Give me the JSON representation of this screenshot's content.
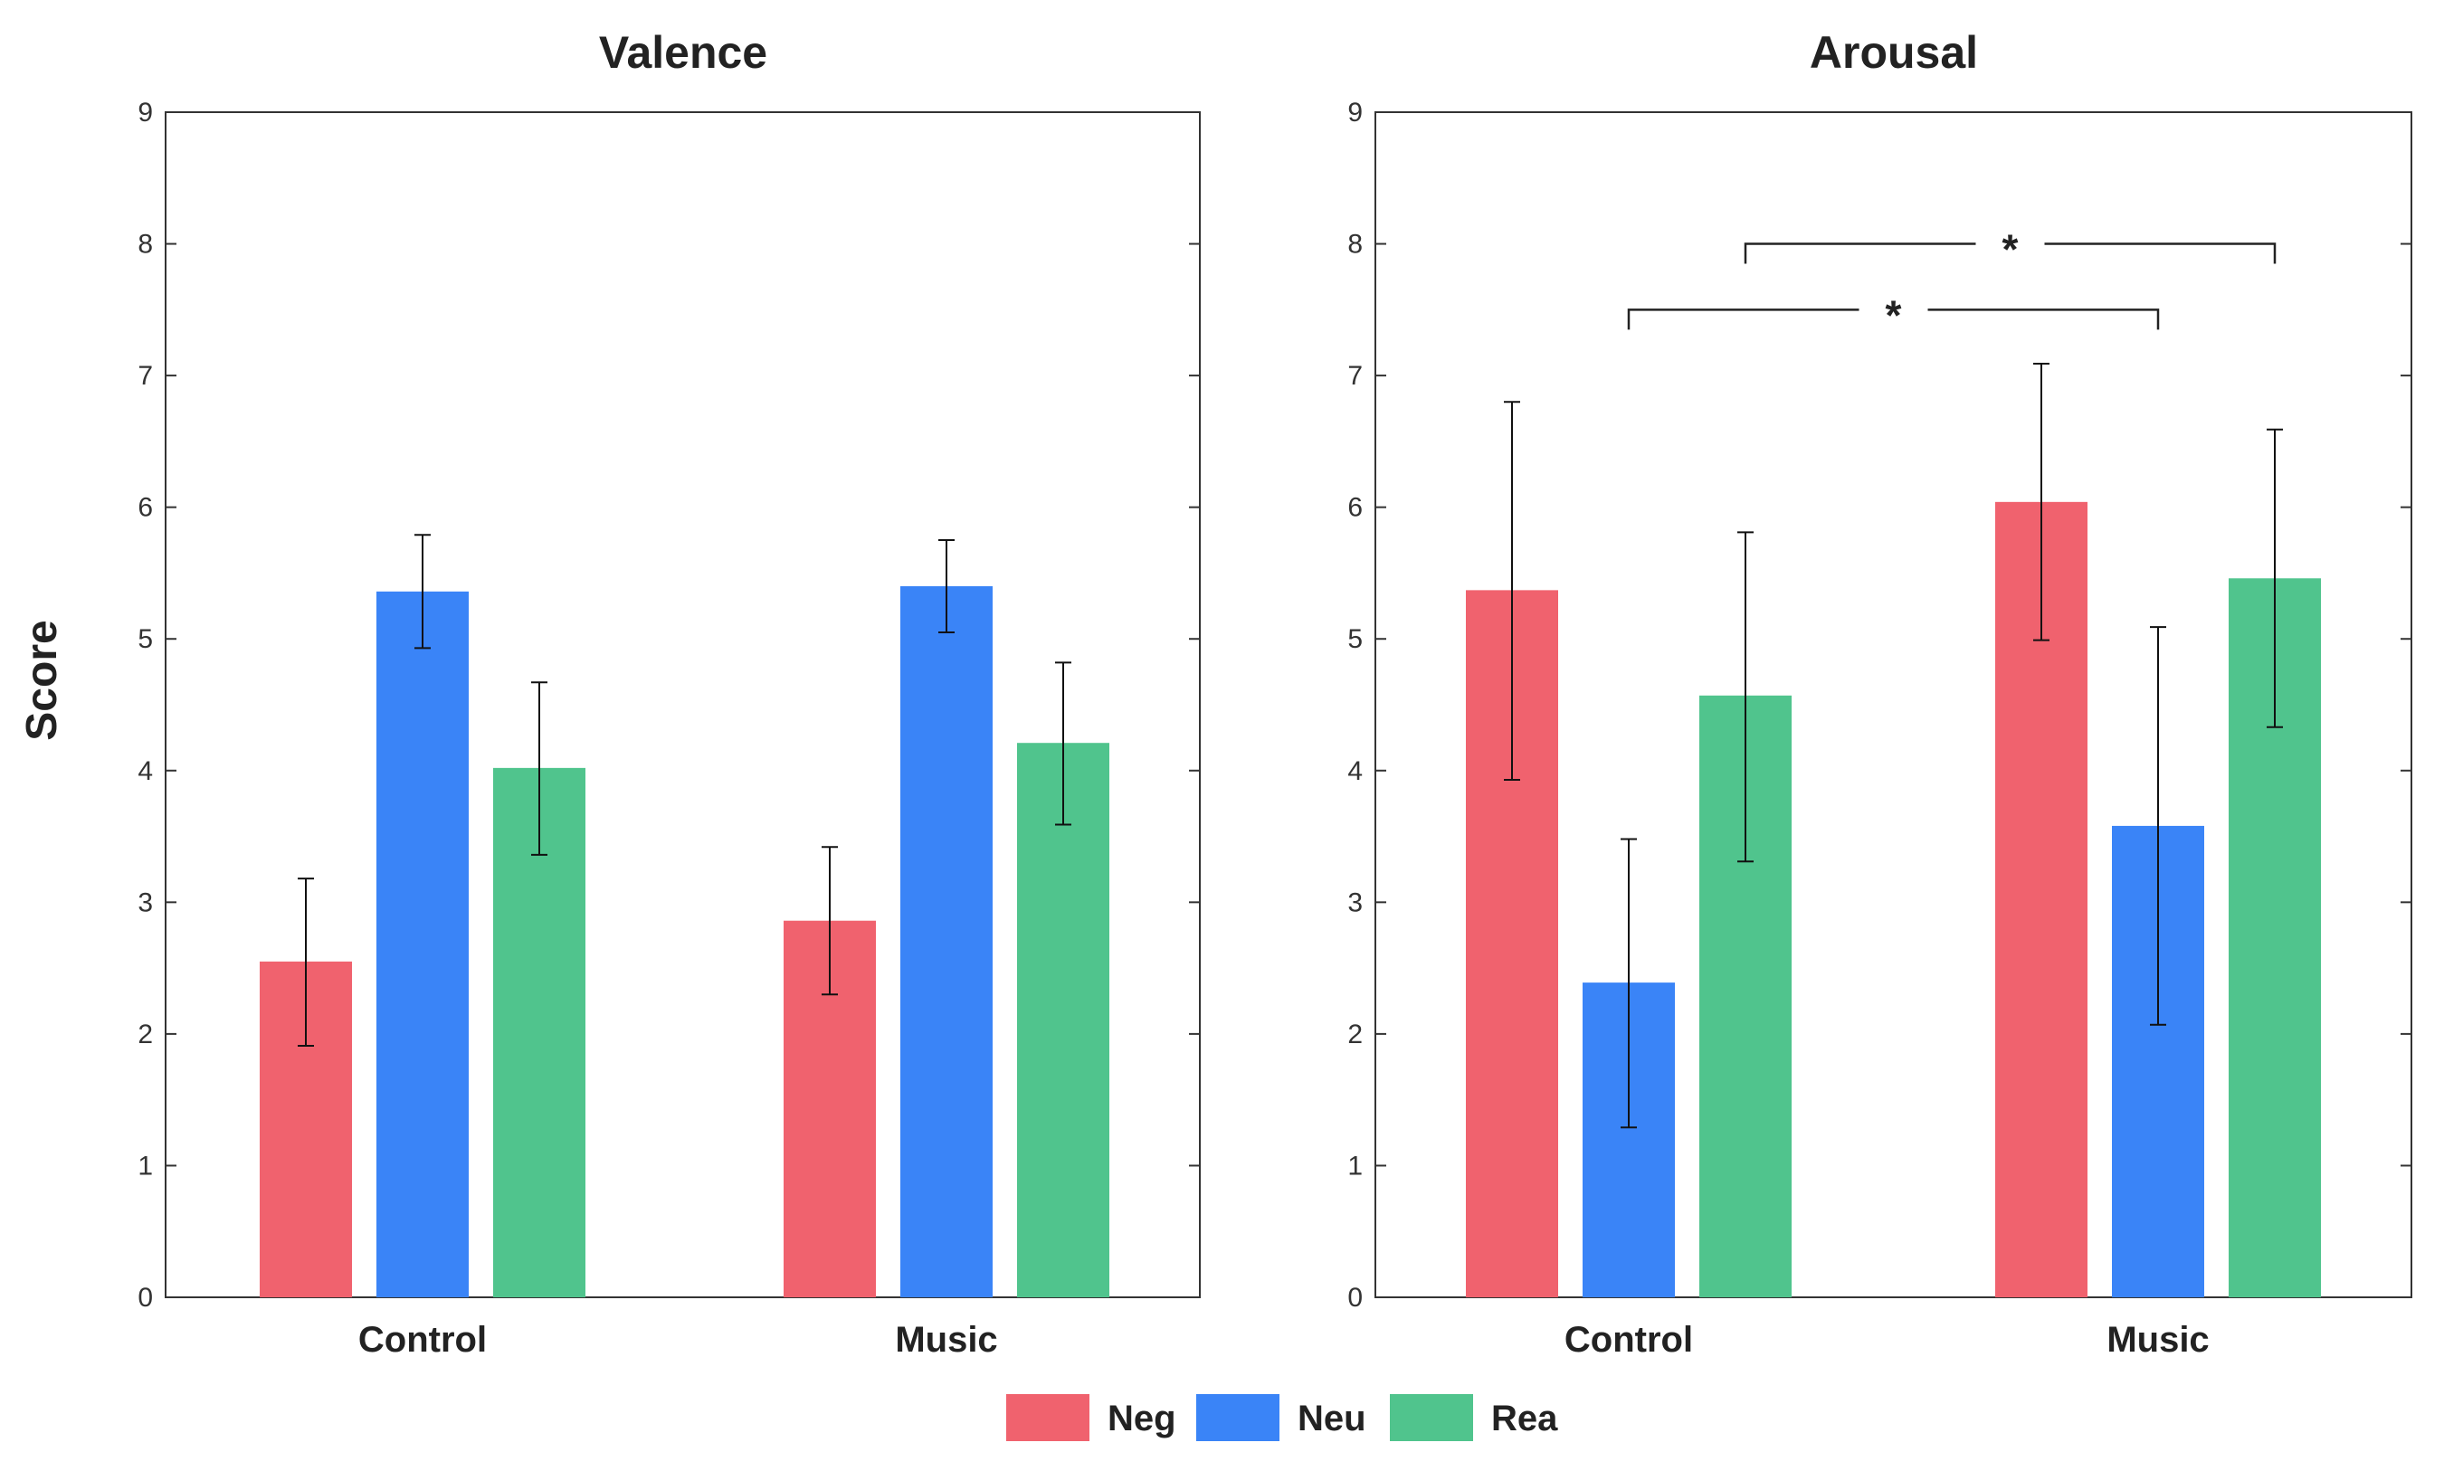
{
  "chart_data": {
    "type": "bar",
    "ylabel": "Score",
    "ylim": [
      0,
      9
    ],
    "yticks": [
      "0",
      "1",
      "2",
      "3",
      "4",
      "5",
      "6",
      "7",
      "8",
      "9"
    ],
    "legend": {
      "position": "bottom-center",
      "entries": [
        {
          "name": "Neg",
          "color": "#f0626e"
        },
        {
          "name": "Neu",
          "color": "#3a84f7"
        },
        {
          "name": "Rea",
          "color": "#50c48d"
        }
      ]
    },
    "panels": [
      {
        "title": "Valence",
        "categories": [
          "Control",
          "Music"
        ],
        "series": [
          {
            "name": "Neg",
            "values": [
              2.55,
              2.86
            ],
            "err_low": [
              1.91,
              2.3
            ],
            "err_high": [
              3.18,
              3.42
            ]
          },
          {
            "name": "Neu",
            "values": [
              5.36,
              5.4
            ],
            "err_low": [
              4.93,
              5.05
            ],
            "err_high": [
              5.79,
              5.75
            ]
          },
          {
            "name": "Rea",
            "values": [
              4.02,
              4.21
            ],
            "err_low": [
              3.36,
              3.59
            ],
            "err_high": [
              4.67,
              4.82
            ]
          }
        ],
        "significance": []
      },
      {
        "title": "Arousal",
        "categories": [
          "Control",
          "Music"
        ],
        "series": [
          {
            "name": "Neg",
            "values": [
              5.37,
              6.04
            ],
            "err_low": [
              3.93,
              4.99
            ],
            "err_high": [
              6.8,
              7.09
            ]
          },
          {
            "name": "Neu",
            "values": [
              2.39,
              3.58
            ],
            "err_low": [
              1.29,
              2.07
            ],
            "err_high": [
              3.48,
              5.09
            ]
          },
          {
            "name": "Rea",
            "values": [
              4.57,
              5.46
            ],
            "err_low": [
              3.31,
              4.33
            ],
            "err_high": [
              5.81,
              6.59
            ]
          }
        ],
        "significance": [
          {
            "label": "*",
            "from": {
              "category": 0,
              "series": 1
            },
            "to": {
              "category": 1,
              "series": 1
            },
            "level": 7.5
          },
          {
            "label": "*",
            "from": {
              "category": 0,
              "series": 2
            },
            "to": {
              "category": 1,
              "series": 2
            },
            "level": 8.0
          }
        ]
      }
    ]
  }
}
